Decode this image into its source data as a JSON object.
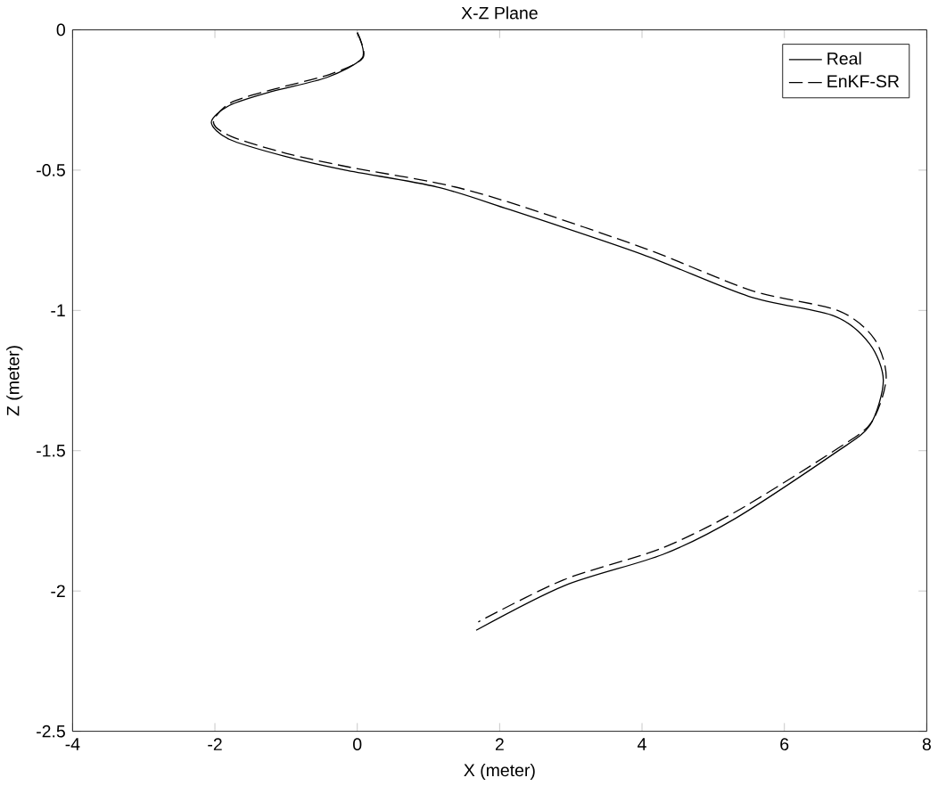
{
  "chart_data": {
    "type": "line",
    "title": "X-Z Plane",
    "xlabel": "X (meter)",
    "ylabel": "Z (meter)",
    "xlim": [
      -4,
      8
    ],
    "ylim": [
      -2.5,
      0
    ],
    "xticks": [
      -4,
      -2,
      0,
      2,
      4,
      6,
      8
    ],
    "yticks": [
      -2.5,
      -2,
      -1.5,
      -1,
      -0.5,
      0
    ],
    "grid": false,
    "legend": "top right",
    "marker": "none",
    "series": [
      {
        "name": "Real",
        "color": "#000000",
        "line_style": "solid",
        "x": [
          0,
          0.07,
          -0.43,
          -1.2,
          -1.8,
          -2.05,
          -1.8,
          -1.03,
          -0.17,
          1.12,
          2.13,
          4,
          5.5,
          6.7,
          7.2,
          7.39,
          7.2,
          6.7,
          5.32,
          4.29,
          2.92,
          1.67
        ],
        "values": [
          -0.01,
          -0.1,
          -0.17,
          -0.22,
          -0.27,
          -0.33,
          -0.39,
          -0.45,
          -0.5,
          -0.56,
          -0.64,
          -0.8,
          -0.95,
          -1.02,
          -1.12,
          -1.25,
          -1.41,
          -1.51,
          -1.74,
          -1.87,
          -1.98,
          -2.14
        ]
      },
      {
        "name": "EnKF-SR",
        "color": "#000000",
        "line_style": "dashed",
        "x": [
          0,
          0.08,
          -0.4,
          -1.15,
          -1.78,
          -2.02,
          -1.77,
          -1.0,
          -0.1,
          1.2,
          2.2,
          4.05,
          5.55,
          6.75,
          7.26,
          7.43,
          7.22,
          6.7,
          5.3,
          4.25,
          2.9,
          1.7
        ],
        "values": [
          -0.01,
          -0.1,
          -0.16,
          -0.21,
          -0.26,
          -0.33,
          -0.38,
          -0.44,
          -0.49,
          -0.55,
          -0.62,
          -0.78,
          -0.93,
          -1.0,
          -1.1,
          -1.24,
          -1.4,
          -1.5,
          -1.72,
          -1.85,
          -1.96,
          -2.11
        ]
      }
    ]
  }
}
